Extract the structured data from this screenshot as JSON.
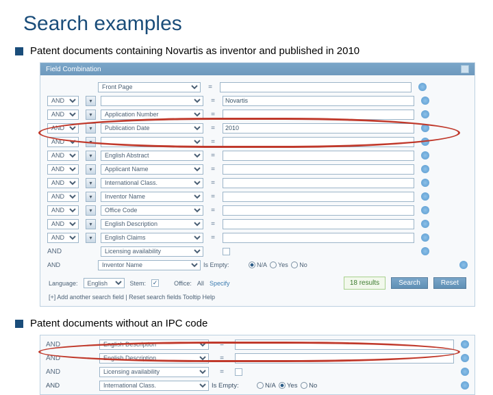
{
  "title": "Search examples",
  "bullets": {
    "first": "Patent documents containing Novartis as inventor and published in 2010",
    "second": "Patent documents without an IPC code"
  },
  "panel1": {
    "header": "Field Combination",
    "first_field": "Front Page",
    "rows": [
      {
        "op": "AND",
        "field": "",
        "val": "Novartis"
      },
      {
        "op": "AND",
        "field": "Application Number",
        "val": ""
      },
      {
        "op": "AND",
        "field": "Publication Date",
        "val": "2010"
      },
      {
        "op": "AND",
        "field": "",
        "val": ""
      },
      {
        "op": "AND",
        "field": "English Abstract",
        "val": ""
      },
      {
        "op": "AND",
        "field": "Applicant Name",
        "val": ""
      },
      {
        "op": "AND",
        "field": "International Class.",
        "val": ""
      },
      {
        "op": "AND",
        "field": "Inventor Name",
        "val": ""
      },
      {
        "op": "AND",
        "field": "Office Code",
        "val": ""
      },
      {
        "op": "AND",
        "field": "English Description",
        "val": ""
      },
      {
        "op": "AND",
        "field": "English Claims",
        "val": ""
      }
    ],
    "licensing_row": {
      "op": "AND",
      "field": "Licensing availability"
    },
    "isempty_row": {
      "op": "AND",
      "field": "Inventor Name",
      "label": "Is Empty:",
      "options": [
        "N/A",
        "Yes",
        "No"
      ],
      "selected": "N/A"
    },
    "footer": {
      "language_label": "Language:",
      "language_value": "English",
      "stem_label": "Stem:",
      "stem_checked": true,
      "office_label": "Office:",
      "office_value": "All",
      "specify": "Specify",
      "results": "18 results",
      "search_btn": "Search",
      "reset_btn": "Reset"
    },
    "links": "[+] Add another search field  |  Reset search fields   Tooltip Help"
  },
  "panel2": {
    "rows": [
      {
        "op": "AND",
        "field": "English Description"
      },
      {
        "op": "AND",
        "field": "English Description"
      },
      {
        "op": "AND",
        "field": "Licensing availability"
      }
    ],
    "isempty": {
      "op": "AND",
      "field": "International Class.",
      "label": "Is Empty:",
      "options": [
        "N/A",
        "Yes",
        "No"
      ],
      "selected": "Yes"
    }
  },
  "eq_sign": "="
}
